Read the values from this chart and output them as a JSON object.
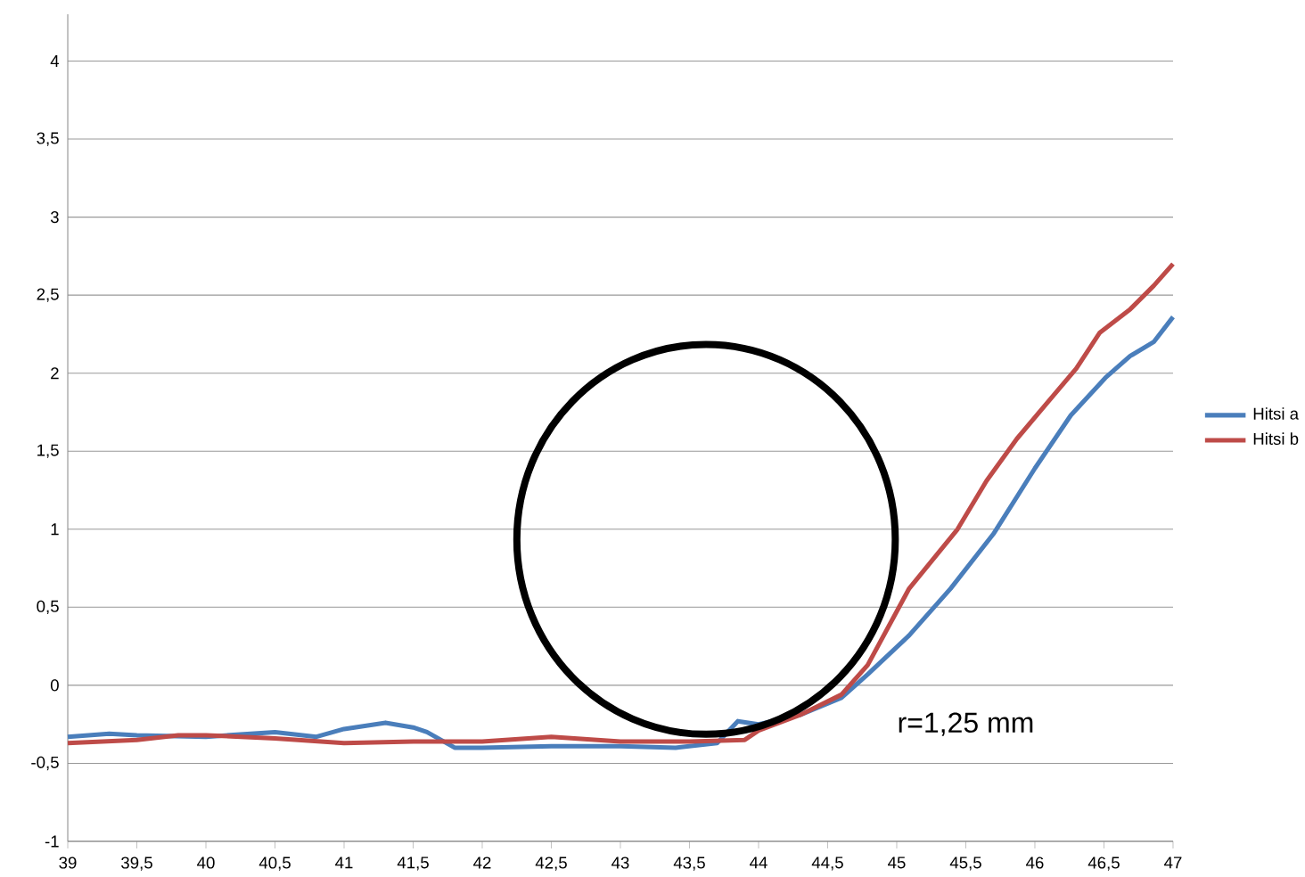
{
  "chart_data": {
    "type": "line",
    "xlim": [
      39,
      47
    ],
    "ylim": [
      -1,
      4.3
    ],
    "xticks": [
      39,
      {
        "value": 39.5,
        "label": "39,5"
      },
      40,
      {
        "value": 40.5,
        "label": "40,5"
      },
      41,
      {
        "value": 41.5,
        "label": "41,5"
      },
      42,
      {
        "value": 42.5,
        "label": "42,5"
      },
      43,
      {
        "value": 43.5,
        "label": "43,5"
      },
      44,
      {
        "value": 44.5,
        "label": "44,5"
      },
      45,
      {
        "value": 45.5,
        "label": "45,5"
      },
      46,
      {
        "value": 46.5,
        "label": "46,5"
      },
      47
    ],
    "yticks": [
      -1,
      {
        "value": -0.5,
        "label": "-0,5"
      },
      0,
      {
        "value": 0.5,
        "label": "0,5"
      },
      1,
      {
        "value": 1.5,
        "label": "1,5"
      },
      2,
      {
        "value": 2.5,
        "label": "2,5"
      },
      3,
      {
        "value": 3.5,
        "label": "3,5"
      },
      4
    ],
    "grid": "y",
    "legend": "right",
    "marker": "none",
    "line_style": "solid",
    "annotations": [
      "r=1,25 mm"
    ],
    "series": [
      {
        "name": "Hitsi a",
        "color": "#4a7ebb",
        "x": [
          39,
          39.3,
          39.5,
          40,
          40.5,
          40.8,
          41,
          41.3,
          41.5,
          41.6,
          41.8,
          42,
          42.5,
          43,
          43.4,
          43.7,
          43.85,
          44,
          44.3,
          44.6,
          44.79,
          45.09,
          45.39,
          45.7,
          46.0,
          46.26,
          46.51,
          46.69,
          46.86,
          47
        ],
        "values": [
          -0.33,
          -0.31,
          -0.32,
          -0.33,
          -0.3,
          -0.33,
          -0.28,
          -0.24,
          -0.27,
          -0.3,
          -0.4,
          -0.4,
          -0.39,
          -0.39,
          -0.4,
          -0.37,
          -0.23,
          -0.25,
          -0.19,
          -0.08,
          0.07,
          0.32,
          0.62,
          0.97,
          1.39,
          1.73,
          1.97,
          2.11,
          2.2,
          2.36
        ]
      },
      {
        "name": "Hitsi b",
        "color": "#be4b48",
        "x": [
          39,
          39.5,
          39.8,
          40,
          40.5,
          41,
          41.5,
          42,
          42.5,
          43,
          43.5,
          43.9,
          44,
          44.3,
          44.6,
          44.79,
          45.09,
          45.44,
          45.65,
          45.87,
          46.08,
          46.3,
          46.47,
          46.69,
          46.86,
          47
        ],
        "values": [
          -0.37,
          -0.35,
          -0.32,
          -0.32,
          -0.34,
          -0.37,
          -0.36,
          -0.36,
          -0.33,
          -0.36,
          -0.36,
          -0.35,
          -0.29,
          -0.19,
          -0.06,
          0.13,
          0.62,
          1.0,
          1.31,
          1.58,
          1.8,
          2.03,
          2.26,
          2.41,
          2.56,
          2.7
        ]
      }
    ]
  }
}
